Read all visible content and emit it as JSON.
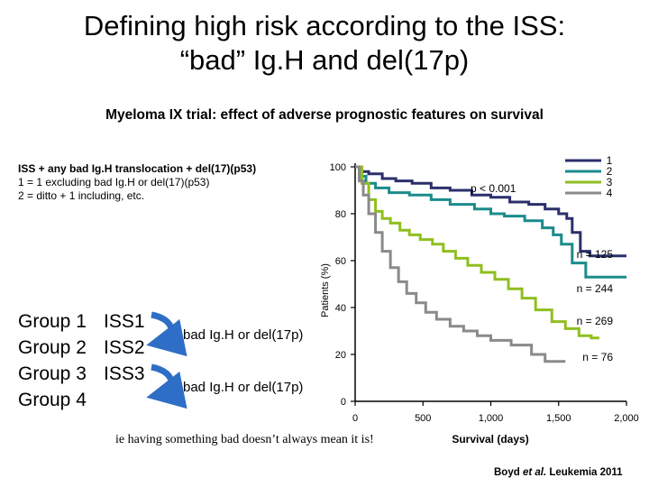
{
  "slide": {
    "title_line1": "Defining high risk according to the ISS:",
    "title_line2": "“bad” Ig.H and del(17p)",
    "subtitle": "Myeloma IX trial: effect of adverse prognostic features on survival",
    "legend_text": {
      "line1": "ISS + any bad Ig.H translocation + del(17)(p53)",
      "line2": "1 = 1 excluding bad Ig.H or del(17)(p53)",
      "line3": "2 = ditto + 1 including, etc."
    },
    "groups": [
      {
        "name": "Group 1",
        "iss": "ISS1"
      },
      {
        "name": "Group 2",
        "iss": "ISS2"
      },
      {
        "name": "Group 3",
        "iss": "ISS3"
      },
      {
        "name": "Group 4",
        "iss": ""
      }
    ],
    "arrow_labels": [
      "bad Ig.H or del(17p)",
      "bad Ig.H or del(17p)"
    ],
    "note": "ie having something bad doesn’t always mean it is!",
    "citation": {
      "pre": "Boyd ",
      "em": "et al.",
      "post": " Leukemia 2011"
    },
    "colors": {
      "arrow": "#2f6ec6",
      "group1": "#2b2f6b",
      "group2": "#1b8b8b",
      "group3": "#8fbf1f",
      "group4": "#8a8a8a"
    }
  },
  "chart_data": {
    "type": "line",
    "title": "",
    "xlabel": "Survival (days)",
    "ylabel": "Patients (%)",
    "xlim": [
      0,
      2000
    ],
    "ylim": [
      0,
      100
    ],
    "x_ticks": [
      0,
      500,
      1000,
      1500,
      2000
    ],
    "x_tick_labels": [
      "0",
      "500",
      "1,000",
      "1,500",
      "2,000"
    ],
    "y_ticks": [
      0,
      20,
      40,
      60,
      80,
      100
    ],
    "y_tick_labels": [
      "0",
      "20",
      "40",
      "60",
      "80",
      "100"
    ],
    "annotation": "p < 0.001",
    "legend_position": "top-right",
    "series": [
      {
        "name": "1",
        "color": "#2b2f6b",
        "n_label": "n = 125",
        "points": [
          [
            0,
            100
          ],
          [
            40,
            98
          ],
          [
            100,
            97
          ],
          [
            200,
            95
          ],
          [
            300,
            94
          ],
          [
            420,
            93
          ],
          [
            560,
            91
          ],
          [
            700,
            90
          ],
          [
            860,
            88
          ],
          [
            1000,
            87
          ],
          [
            1140,
            85
          ],
          [
            1280,
            84
          ],
          [
            1400,
            82
          ],
          [
            1500,
            80
          ],
          [
            1560,
            78
          ],
          [
            1600,
            72
          ],
          [
            1660,
            64
          ],
          [
            1730,
            62
          ],
          [
            1800,
            62
          ],
          [
            2000,
            62
          ]
        ]
      },
      {
        "name": "2",
        "color": "#1b8b8b",
        "n_label": "n = 244",
        "points": [
          [
            0,
            100
          ],
          [
            40,
            96
          ],
          [
            80,
            93
          ],
          [
            150,
            91
          ],
          [
            250,
            89
          ],
          [
            400,
            88
          ],
          [
            560,
            86
          ],
          [
            700,
            84
          ],
          [
            880,
            82
          ],
          [
            1000,
            80
          ],
          [
            1100,
            79
          ],
          [
            1250,
            77
          ],
          [
            1380,
            74
          ],
          [
            1460,
            71
          ],
          [
            1520,
            67
          ],
          [
            1600,
            59
          ],
          [
            1700,
            53
          ],
          [
            1800,
            53
          ],
          [
            2000,
            53
          ]
        ]
      },
      {
        "name": "3",
        "color": "#8fbf1f",
        "n_label": "n = 269",
        "points": [
          [
            0,
            100
          ],
          [
            50,
            93
          ],
          [
            100,
            86
          ],
          [
            150,
            81
          ],
          [
            200,
            78
          ],
          [
            260,
            76
          ],
          [
            330,
            73
          ],
          [
            400,
            71
          ],
          [
            480,
            69
          ],
          [
            570,
            67
          ],
          [
            650,
            64
          ],
          [
            740,
            61
          ],
          [
            830,
            58
          ],
          [
            930,
            55
          ],
          [
            1030,
            52
          ],
          [
            1130,
            48
          ],
          [
            1230,
            44
          ],
          [
            1330,
            39
          ],
          [
            1450,
            34
          ],
          [
            1550,
            31
          ],
          [
            1650,
            28
          ],
          [
            1740,
            27
          ],
          [
            1800,
            27
          ]
        ]
      },
      {
        "name": "4",
        "color": "#8a8a8a",
        "n_label": "n = 76",
        "points": [
          [
            0,
            100
          ],
          [
            30,
            94
          ],
          [
            60,
            88
          ],
          [
            100,
            80
          ],
          [
            150,
            72
          ],
          [
            200,
            64
          ],
          [
            260,
            57
          ],
          [
            320,
            51
          ],
          [
            380,
            46
          ],
          [
            450,
            42
          ],
          [
            520,
            38
          ],
          [
            600,
            35
          ],
          [
            700,
            32
          ],
          [
            800,
            30
          ],
          [
            900,
            28
          ],
          [
            1000,
            26
          ],
          [
            1150,
            24
          ],
          [
            1300,
            20
          ],
          [
            1400,
            17
          ],
          [
            1550,
            17
          ]
        ]
      }
    ]
  }
}
